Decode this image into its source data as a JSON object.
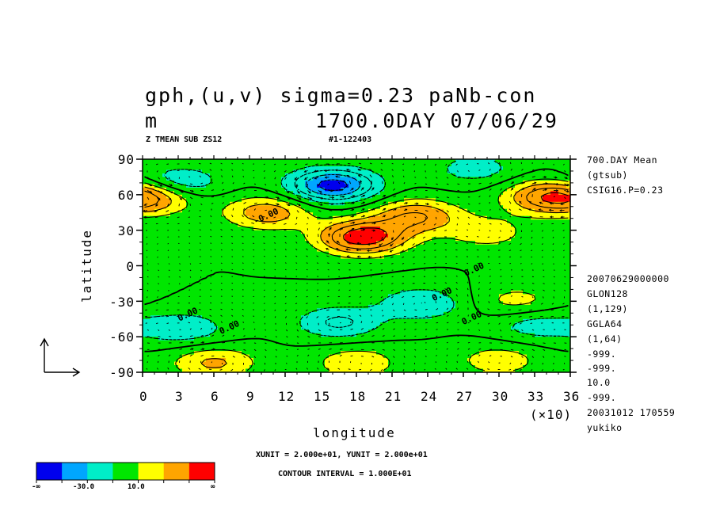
{
  "header": {
    "title_line1": "gph,(u,v) sigma=0.23  paNb-con",
    "title_line2_left": "m",
    "title_line2_right": "1700.0DAY 07/06/29",
    "subtitle_left": "Z TMEAN SUB ZS12",
    "subtitle_right": "#1-122403"
  },
  "side_info": {
    "top": [
      "700.DAY Mean",
      "(gtsub)",
      "CSIG16.P=0.23"
    ],
    "bottom": [
      "20070629000000",
      "GLON128",
      "(1,129)",
      "GGLA64",
      "(1,64)",
      "-999.",
      "-999.",
      "10.0",
      "-999.",
      "20031012 170559",
      "yukiko"
    ]
  },
  "footer": {
    "unit_line": "XUNIT = 2.000e+01, YUNIT = 2.000e+01",
    "contour_line": "CONTOUR INTERVAL = 1.000E+01"
  },
  "colorbar": {
    "colors": [
      "#0000ee",
      "#00a6ff",
      "#00eec8",
      "#00e600",
      "#ffff00",
      "#ffa500",
      "#ff0000"
    ],
    "labels": [
      "-∞",
      "-30.0",
      "10.0",
      "∞"
    ]
  },
  "chart_data": {
    "type": "heatmap",
    "subtype": "filled contour map with wind vectors",
    "xlabel": "longitude",
    "ylabel": "latitude",
    "x_multiplier_label": "(×10)",
    "xlim": [
      0,
      36
    ],
    "ylim": [
      -90,
      90
    ],
    "x_ticks": [
      0,
      3,
      6,
      9,
      12,
      15,
      18,
      21,
      24,
      27,
      30,
      33,
      36
    ],
    "y_ticks": [
      90,
      60,
      30,
      0,
      -30,
      -60,
      -90
    ],
    "y_tick_labels": [
      "90",
      "60",
      "30",
      "0",
      "-30",
      "-60",
      "-90"
    ],
    "contour_interval": 10,
    "contour_labels": [
      "-0.00",
      "0.00",
      "0.00",
      "0.00",
      "0.00",
      "0.00"
    ],
    "anomaly_centers": [
      {
        "lon": 16,
        "lat": 68,
        "value": -45
      },
      {
        "lon": 18.5,
        "lat": 24,
        "value": 48
      },
      {
        "lon": 23,
        "lat": 42,
        "value": 30
      },
      {
        "lon": 34,
        "lat": 58,
        "value": 32
      },
      {
        "lon": 10.5,
        "lat": 45,
        "value": 27
      },
      {
        "lon": 1,
        "lat": 58,
        "value": 24
      },
      {
        "lon": 29,
        "lat": 28,
        "value": 15
      },
      {
        "lon": 3,
        "lat": 70,
        "value": -22
      },
      {
        "lon": 28,
        "lat": 82,
        "value": -15
      },
      {
        "lon": 23.5,
        "lat": -32,
        "value": -20
      },
      {
        "lon": 16.5,
        "lat": -48,
        "value": -22
      },
      {
        "lon": 3.5,
        "lat": -53,
        "value": -18
      },
      {
        "lon": 33,
        "lat": -50,
        "value": -15
      },
      {
        "lon": 31.5,
        "lat": -30,
        "value": 14
      },
      {
        "lon": 6,
        "lat": -82,
        "value": 22
      },
      {
        "lon": 18,
        "lat": -82,
        "value": 18
      },
      {
        "lon": 30,
        "lat": -80,
        "value": 16
      }
    ],
    "grid": false
  }
}
